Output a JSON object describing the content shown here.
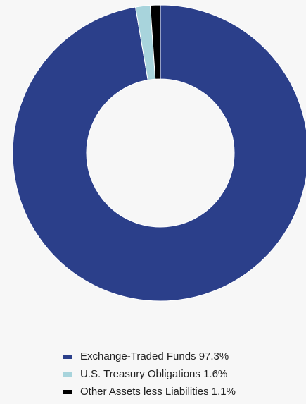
{
  "chart_data": {
    "type": "pie",
    "donut": true,
    "title": "",
    "legend_position": "bottom-center",
    "slices": [
      {
        "label": "Exchange-Traded Funds",
        "value": 97.3,
        "color": "#2b3f8a",
        "legend_text": "Exchange-Traded Funds 97.3%"
      },
      {
        "label": "U.S. Treasury Obligations",
        "value": 1.6,
        "color": "#a8d4dc",
        "legend_text": "U.S. Treasury Obligations 1.6%"
      },
      {
        "label": "Other Assets less Liabilities",
        "value": 1.1,
        "color": "#000000",
        "legend_text": "Other Assets less Liabilities 1.1%"
      }
    ],
    "background": "#f7f7f7"
  }
}
